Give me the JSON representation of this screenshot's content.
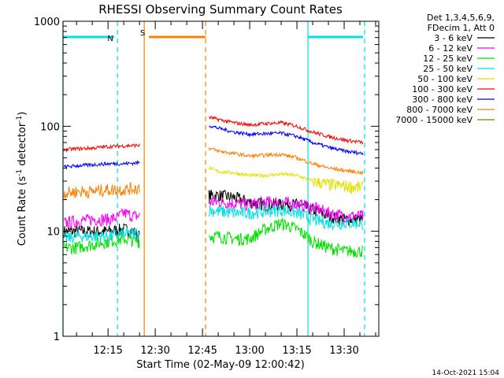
{
  "chart_data": {
    "type": "line",
    "title": "RHESSI Observing Summary Count Rates",
    "xlabel": "Start Time (02-May-09 12:00:42)",
    "ylabel_main": "Count Rate (s",
    "ylabel_sup1": "-1",
    "ylabel_mid": " detector",
    "ylabel_sup2": "-1",
    "ylabel_end": ")",
    "yscale": "log",
    "ylim": [
      1,
      1000
    ],
    "xlim": [
      "12:00:42",
      "13:41:00"
    ],
    "x_ticks": [
      "12:15",
      "12:30",
      "12:45",
      "13:00",
      "13:15",
      "13:30"
    ],
    "y_ticks": [
      "1",
      "10",
      "100",
      "1000"
    ],
    "legend_header": [
      "Det 1,3,4,5,6,9,",
      "FDecim 1, Att 0"
    ],
    "legend_position": "top-right",
    "date_stamp": "14-Oct-2021 15:04",
    "flags": [
      {
        "label": "N",
        "color": "#00e0e0",
        "segments": [
          [
            "12:00:42",
            "12:17:00"
          ],
          [
            "13:18:30",
            "13:36:00"
          ]
        ]
      },
      {
        "label": "S",
        "color": "#ff8000",
        "segments": [
          [
            "12:28:00",
            "12:46:00"
          ]
        ]
      }
    ],
    "vertical_markers": [
      {
        "time": "12:00:42",
        "color": "#00e0e0",
        "style": "solid"
      },
      {
        "time": "12:18:00",
        "color": "#00e0e0",
        "style": "dashed"
      },
      {
        "time": "12:26:30",
        "color": "#ff8000",
        "style": "solid"
      },
      {
        "time": "12:46:00",
        "color": "#ff8000",
        "style": "dashed"
      },
      {
        "time": "13:18:30",
        "color": "#00e0e0",
        "style": "solid"
      },
      {
        "time": "13:36:30",
        "color": "#00e0e0",
        "style": "dashed"
      }
    ],
    "series": [
      {
        "name": "3 - 6 keV",
        "color": "#000000",
        "segments": [
          {
            "x": [
              "12:01",
              "12:05",
              "12:10",
              "12:15",
              "12:20",
              "12:23",
              "12:25"
            ],
            "y": [
              10,
              10,
              10,
              10,
              10.5,
              10,
              9
            ]
          },
          {
            "x": [
              "12:47",
              "12:50",
              "12:55",
              "13:00",
              "13:05",
              "13:10",
              "13:15",
              "13:20",
              "13:25",
              "13:30",
              "13:36"
            ],
            "y": [
              22,
              22,
              21,
              19,
              18,
              18,
              18,
              16,
              14,
              13,
              13
            ]
          }
        ]
      },
      {
        "name": "6 - 12 keV",
        "color": "#ff00ff",
        "segments": [
          {
            "x": [
              "12:01",
              "12:05",
              "12:10",
              "12:15",
              "12:18",
              "12:20",
              "12:23",
              "12:25"
            ],
            "y": [
              12,
              12.5,
              13,
              13,
              13.5,
              15,
              14,
              14
            ]
          },
          {
            "x": [
              "12:47",
              "12:50",
              "12:55",
              "13:00",
              "13:05",
              "13:10",
              "13:15",
              "13:20",
              "13:25",
              "13:30",
              "13:36"
            ],
            "y": [
              19,
              19,
              18.5,
              18,
              19,
              19,
              18,
              17,
              15,
              14,
              14
            ]
          }
        ]
      },
      {
        "name": "12 - 25 keV",
        "color": "#00e000",
        "segments": [
          {
            "x": [
              "12:01",
              "12:05",
              "12:10",
              "12:15",
              "12:20",
              "12:25"
            ],
            "y": [
              7,
              7,
              7.5,
              8,
              8.5,
              8
            ]
          },
          {
            "x": [
              "12:47",
              "12:50",
              "12:55",
              "13:00",
              "13:05",
              "13:10",
              "13:15",
              "13:20",
              "13:25",
              "13:30",
              "13:36"
            ],
            "y": [
              9,
              9,
              8.5,
              8.5,
              10.5,
              12,
              10.5,
              8,
              7,
              6.5,
              6.5
            ]
          }
        ]
      },
      {
        "name": "25 - 50 keV",
        "color": "#00e0e0",
        "segments": [
          {
            "x": [
              "12:01",
              "12:05",
              "12:10",
              "12:15",
              "12:20",
              "12:25"
            ],
            "y": [
              8.5,
              9,
              9,
              9,
              9.5,
              9.5
            ]
          },
          {
            "x": [
              "12:47",
              "12:50",
              "12:55",
              "13:00",
              "13:05",
              "13:10",
              "13:15",
              "13:20",
              "13:25",
              "13:30",
              "13:36"
            ],
            "y": [
              16,
              15.5,
              15,
              15,
              15.5,
              16,
              15,
              13,
              12,
              12,
              12
            ]
          }
        ]
      },
      {
        "name": "50 - 100 keV",
        "color": "#e0e000",
        "segments": [
          {
            "x": [
              "12:47",
              "12:50",
              "12:55",
              "13:00",
              "13:05",
              "13:10",
              "13:15",
              "13:20",
              "13:25",
              "13:30",
              "13:36"
            ],
            "y": [
              40,
              37,
              36,
              34,
              34,
              35,
              34,
              30,
              28,
              27,
              26
            ]
          }
        ]
      },
      {
        "name": "100 - 300 keV",
        "color": "#ff0000",
        "segments": [
          {
            "x": [
              "12:01",
              "12:05",
              "12:10",
              "12:15",
              "12:20",
              "12:25"
            ],
            "y": [
              60,
              61,
              62,
              64,
              65,
              66
            ]
          },
          {
            "x": [
              "12:47",
              "12:50",
              "12:55",
              "13:00",
              "13:05",
              "13:10",
              "13:15",
              "13:20",
              "13:25",
              "13:30",
              "13:36"
            ],
            "y": [
              122,
              116,
              108,
              103,
              106,
              108,
              100,
              88,
              80,
              74,
              70
            ]
          }
        ]
      },
      {
        "name": "300 - 800 keV",
        "color": "#0000ff",
        "segments": [
          {
            "x": [
              "12:01",
              "12:05",
              "12:10",
              "12:15",
              "12:20",
              "12:25"
            ],
            "y": [
              41,
              42,
              43,
              44,
              44,
              45
            ]
          },
          {
            "x": [
              "12:47",
              "12:50",
              "12:55",
              "13:00",
              "13:05",
              "13:10",
              "13:15",
              "13:20",
              "13:25",
              "13:30",
              "13:36"
            ],
            "y": [
              102,
              96,
              88,
              84,
              85,
              86,
              80,
              70,
              63,
              58,
              55
            ]
          }
        ]
      },
      {
        "name": "800 - 7000 keV",
        "color": "#ff8000",
        "segments": [
          {
            "x": [
              "12:01",
              "12:05",
              "12:10",
              "12:15",
              "12:20",
              "12:25"
            ],
            "y": [
              23,
              24,
              24,
              25,
              25,
              26
            ]
          },
          {
            "x": [
              "12:47",
              "12:50",
              "12:55",
              "13:00",
              "13:05",
              "13:10",
              "13:15",
              "13:20",
              "13:25",
              "13:30",
              "13:36"
            ],
            "y": [
              62,
              58,
              55,
              52,
              53,
              54,
              50,
              44,
              40,
              38,
              36
            ]
          }
        ]
      },
      {
        "name": "7000 - 15000 keV",
        "color": "#808000",
        "segments": []
      }
    ]
  }
}
